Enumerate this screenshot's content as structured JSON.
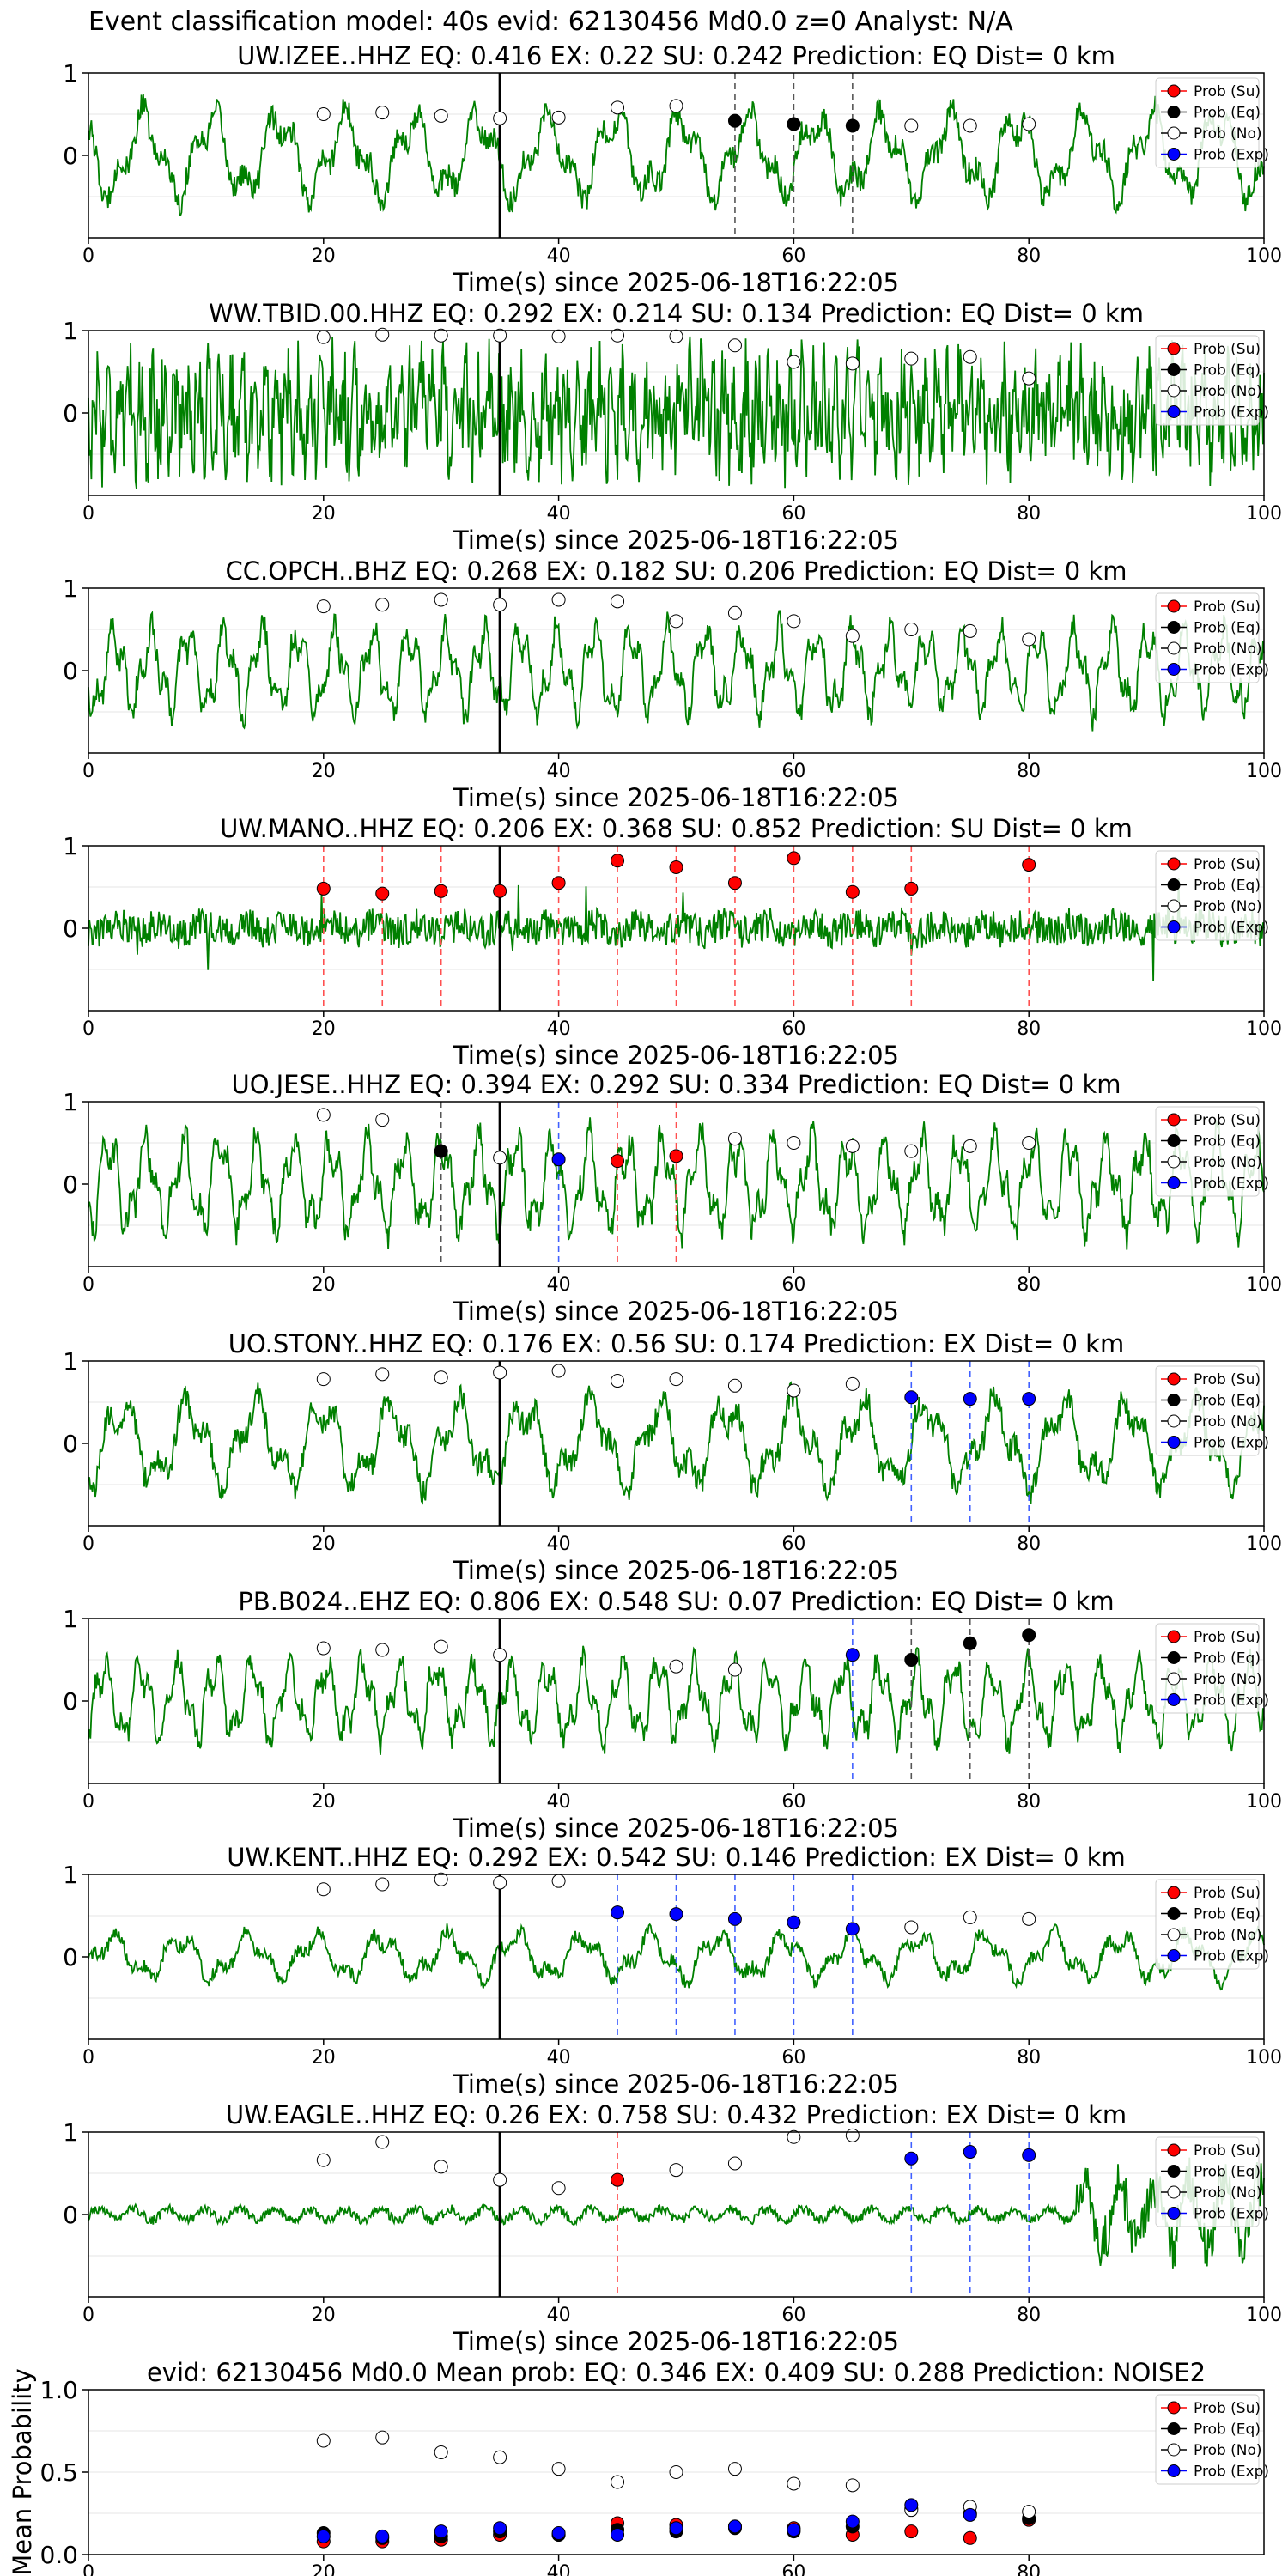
{
  "figure_title": "Event classification model: 40s evid: 62130456 Md0.0 z=0 Analyst: N/A",
  "colors": {
    "waveform": "#008000",
    "su": "#ff0000",
    "eq": "#000000",
    "no": "#ffffff",
    "exp": "#0000ff",
    "marker_line": "#000000",
    "grid": "#e6e6e6",
    "dash_eq": "#555555",
    "dash_su": "#ff5050",
    "dash_exp": "#4060ff"
  },
  "chart_data": [
    {
      "type": "line",
      "title": "UW.IZEE..HHZ   EQ: 0.416  EX: 0.22  SU: 0.242   Prediction: EQ    Dist= 0 km",
      "xlabel": "Time(s) since 2025-06-18T16:22:05",
      "xlim": [
        0,
        100
      ],
      "ylim": [
        -1,
        1
      ],
      "xticks": [
        0,
        20,
        40,
        60,
        80,
        100
      ],
      "yticks": [
        0,
        1
      ],
      "marker_time": 35,
      "grid": true,
      "legend": {
        "placement": "top-right",
        "entries": [
          "Prob (Su)",
          "Prob (Eq)",
          "Prob (No)",
          "Prob (Exp)"
        ]
      },
      "waveform": {
        "amplitude": 0.55,
        "character": "low-frequency"
      },
      "points": {
        "no": [
          [
            20,
            0.5
          ],
          [
            25,
            0.52
          ],
          [
            30,
            0.48
          ],
          [
            35,
            0.45
          ],
          [
            40,
            0.46
          ],
          [
            45,
            0.58
          ],
          [
            50,
            0.6
          ],
          [
            70,
            0.36
          ],
          [
            75,
            0.36
          ],
          [
            80,
            0.38
          ]
        ],
        "eq": [
          [
            55,
            0.42
          ],
          [
            60,
            0.38
          ],
          [
            65,
            0.36
          ]
        ],
        "su": [],
        "exp": []
      },
      "dashed": {
        "eq": [
          55,
          60,
          65
        ],
        "su": [],
        "exp": []
      }
    },
    {
      "type": "line",
      "title": "WW.TBID.00.HHZ   EQ: 0.292  EX: 0.214  SU: 0.134   Prediction: EQ    Dist= 0 km",
      "xlabel": "Time(s) since 2025-06-18T16:22:05",
      "xlim": [
        0,
        100
      ],
      "ylim": [
        -1,
        1
      ],
      "xticks": [
        0,
        20,
        40,
        60,
        80,
        100
      ],
      "yticks": [
        0,
        1
      ],
      "marker_time": 35,
      "grid": true,
      "legend": {
        "placement": "top-right",
        "entries": [
          "Prob (Su)",
          "Prob (Eq)",
          "Prob (No)",
          "Prob (Exp)"
        ]
      },
      "waveform": {
        "amplitude": 0.85,
        "character": "high-frequency"
      },
      "points": {
        "no": [
          [
            20,
            0.92
          ],
          [
            25,
            0.95
          ],
          [
            30,
            0.94
          ],
          [
            35,
            0.94
          ],
          [
            40,
            0.93
          ],
          [
            45,
            0.94
          ],
          [
            50,
            0.93
          ],
          [
            55,
            0.82
          ],
          [
            60,
            0.62
          ],
          [
            65,
            0.6
          ],
          [
            70,
            0.66
          ],
          [
            75,
            0.68
          ],
          [
            80,
            0.42
          ]
        ],
        "eq": [],
        "su": [],
        "exp": []
      },
      "dashed": {
        "eq": [],
        "su": [],
        "exp": []
      }
    },
    {
      "type": "line",
      "title": "CC.OPCH..BHZ   EQ: 0.268  EX: 0.182  SU: 0.206   Prediction: EQ    Dist= 0 km",
      "xlabel": "Time(s) since 2025-06-18T16:22:05",
      "xlim": [
        0,
        100
      ],
      "ylim": [
        -1,
        1
      ],
      "xticks": [
        0,
        20,
        40,
        60,
        80,
        100
      ],
      "yticks": [
        0,
        1
      ],
      "marker_time": 35,
      "grid": true,
      "legend": {
        "placement": "top-right",
        "entries": [
          "Prob (Su)",
          "Prob (Eq)",
          "Prob (No)",
          "Prob (Exp)"
        ]
      },
      "waveform": {
        "amplitude": 0.55,
        "character": "medium"
      },
      "points": {
        "no": [
          [
            20,
            0.78
          ],
          [
            25,
            0.8
          ],
          [
            30,
            0.86
          ],
          [
            35,
            0.8
          ],
          [
            40,
            0.86
          ],
          [
            45,
            0.84
          ],
          [
            50,
            0.6
          ],
          [
            55,
            0.7
          ],
          [
            60,
            0.6
          ],
          [
            65,
            0.42
          ],
          [
            70,
            0.5
          ],
          [
            75,
            0.48
          ],
          [
            80,
            0.38
          ]
        ],
        "eq": [],
        "su": [],
        "exp": []
      },
      "dashed": {
        "eq": [],
        "su": [],
        "exp": []
      }
    },
    {
      "type": "line",
      "title": "UW.MANO..HHZ   EQ: 0.206  EX: 0.368  SU: 0.852   Prediction: SU    Dist= 0 km",
      "xlabel": "Time(s) since 2025-06-18T16:22:05",
      "xlim": [
        0,
        100
      ],
      "ylim": [
        -1,
        1
      ],
      "xticks": [
        0,
        20,
        40,
        60,
        80,
        100
      ],
      "yticks": [
        0,
        1
      ],
      "marker_time": 35,
      "grid": true,
      "legend": {
        "placement": "top-right",
        "entries": [
          "Prob (Su)",
          "Prob (Eq)",
          "Prob (No)",
          "Prob (Exp)"
        ]
      },
      "waveform": {
        "amplitude": 0.22,
        "character": "noisy"
      },
      "points": {
        "su": [
          [
            20,
            0.48
          ],
          [
            25,
            0.42
          ],
          [
            30,
            0.45
          ],
          [
            35,
            0.45
          ],
          [
            40,
            0.55
          ],
          [
            45,
            0.82
          ],
          [
            50,
            0.74
          ],
          [
            55,
            0.55
          ],
          [
            60,
            0.85
          ],
          [
            65,
            0.44
          ],
          [
            70,
            0.48
          ],
          [
            80,
            0.77
          ]
        ],
        "eq": [],
        "no": [],
        "exp": []
      },
      "dashed": {
        "eq": [],
        "su": [
          20,
          25,
          30,
          35,
          40,
          45,
          50,
          55,
          60,
          65,
          70,
          80
        ],
        "exp": []
      }
    },
    {
      "type": "line",
      "title": "UO.JESE..HHZ   EQ: 0.394  EX: 0.292  SU: 0.334   Prediction: EQ    Dist= 0 km",
      "xlabel": "Time(s) since 2025-06-18T16:22:05",
      "xlim": [
        0,
        100
      ],
      "ylim": [
        -1,
        1
      ],
      "xticks": [
        0,
        20,
        40,
        60,
        80,
        100
      ],
      "yticks": [
        0,
        1
      ],
      "marker_time": 35,
      "grid": true,
      "legend": {
        "placement": "top-right",
        "entries": [
          "Prob (Su)",
          "Prob (Eq)",
          "Prob (No)",
          "Prob (Exp)"
        ]
      },
      "waveform": {
        "amplitude": 0.6,
        "character": "medium"
      },
      "points": {
        "no": [
          [
            20,
            0.84
          ],
          [
            25,
            0.78
          ],
          [
            35,
            0.32
          ],
          [
            55,
            0.55
          ],
          [
            60,
            0.5
          ],
          [
            65,
            0.46
          ],
          [
            70,
            0.4
          ],
          [
            75,
            0.46
          ],
          [
            80,
            0.5
          ]
        ],
        "eq": [
          [
            30,
            0.4
          ]
        ],
        "exp": [
          [
            40,
            0.3
          ]
        ],
        "su": [
          [
            45,
            0.28
          ],
          [
            50,
            0.34
          ]
        ]
      },
      "dashed": {
        "eq": [
          30
        ],
        "su": [
          45,
          50
        ],
        "exp": [
          40
        ]
      }
    },
    {
      "type": "line",
      "title": "UO.STONY..HHZ   EQ: 0.176  EX: 0.56  SU: 0.174   Prediction: EX    Dist= 0 km",
      "xlabel": "Time(s) since 2025-06-18T16:22:05",
      "xlim": [
        0,
        100
      ],
      "ylim": [
        -1,
        1
      ],
      "xticks": [
        0,
        20,
        40,
        60,
        80,
        100
      ],
      "yticks": [
        0,
        1
      ],
      "marker_time": 35,
      "grid": true,
      "legend": {
        "placement": "top-right",
        "entries": [
          "Prob (Su)",
          "Prob (Eq)",
          "Prob (No)",
          "Prob (Exp)"
        ]
      },
      "waveform": {
        "amplitude": 0.55,
        "character": "low-frequency"
      },
      "points": {
        "no": [
          [
            20,
            0.78
          ],
          [
            25,
            0.84
          ],
          [
            30,
            0.8
          ],
          [
            35,
            0.86
          ],
          [
            40,
            0.88
          ],
          [
            45,
            0.76
          ],
          [
            50,
            0.78
          ],
          [
            55,
            0.7
          ],
          [
            60,
            0.64
          ],
          [
            65,
            0.72
          ]
        ],
        "exp": [
          [
            70,
            0.56
          ],
          [
            75,
            0.54
          ],
          [
            80,
            0.54
          ]
        ],
        "eq": [],
        "su": []
      },
      "dashed": {
        "eq": [],
        "su": [],
        "exp": [
          70,
          75,
          80
        ]
      }
    },
    {
      "type": "line",
      "title": "PB.B024..EHZ   EQ: 0.806  EX: 0.548  SU: 0.07   Prediction: EQ    Dist= 0 km",
      "xlabel": "Time(s) since 2025-06-18T16:22:05",
      "xlim": [
        0,
        100
      ],
      "ylim": [
        -1,
        1
      ],
      "xticks": [
        0,
        20,
        40,
        60,
        80,
        100
      ],
      "yticks": [
        0,
        1
      ],
      "marker_time": 35,
      "grid": true,
      "legend": {
        "placement": "top-right",
        "entries": [
          "Prob (Su)",
          "Prob (Eq)",
          "Prob (No)",
          "Prob (Exp)"
        ]
      },
      "waveform": {
        "amplitude": 0.5,
        "character": "medium"
      },
      "points": {
        "no": [
          [
            20,
            0.64
          ],
          [
            25,
            0.62
          ],
          [
            30,
            0.66
          ],
          [
            35,
            0.56
          ],
          [
            50,
            0.42
          ],
          [
            55,
            0.38
          ]
        ],
        "exp": [
          [
            65,
            0.56
          ]
        ],
        "eq": [
          [
            70,
            0.5
          ],
          [
            75,
            0.7
          ],
          [
            80,
            0.8
          ]
        ],
        "su": []
      },
      "dashed": {
        "eq": [
          70,
          75,
          80
        ],
        "su": [],
        "exp": [
          65
        ]
      }
    },
    {
      "type": "line",
      "title": "UW.KENT..HHZ   EQ: 0.292  EX: 0.542  SU: 0.146   Prediction: EX    Dist= 0 km",
      "xlabel": "Time(s) since 2025-06-18T16:22:05",
      "xlim": [
        0,
        100
      ],
      "ylim": [
        -1,
        1
      ],
      "xticks": [
        0,
        20,
        40,
        60,
        80,
        100
      ],
      "yticks": [
        0,
        1
      ],
      "marker_time": 35,
      "grid": true,
      "legend": {
        "placement": "top-right",
        "entries": [
          "Prob (Su)",
          "Prob (Eq)",
          "Prob (No)",
          "Prob (Exp)"
        ]
      },
      "waveform": {
        "amplitude": 0.3,
        "character": "low-frequency"
      },
      "points": {
        "no": [
          [
            20,
            0.82
          ],
          [
            25,
            0.88
          ],
          [
            30,
            0.94
          ],
          [
            35,
            0.9
          ],
          [
            40,
            0.92
          ],
          [
            70,
            0.36
          ],
          [
            75,
            0.48
          ],
          [
            80,
            0.46
          ]
        ],
        "exp": [
          [
            45,
            0.54
          ],
          [
            50,
            0.52
          ],
          [
            55,
            0.46
          ],
          [
            60,
            0.42
          ],
          [
            65,
            0.34
          ]
        ],
        "eq": [],
        "su": []
      },
      "dashed": {
        "eq": [],
        "su": [],
        "exp": [
          45,
          50,
          55,
          60,
          65
        ]
      }
    },
    {
      "type": "line",
      "title": "UW.EAGLE..HHZ   EQ: 0.26  EX: 0.758  SU: 0.432   Prediction: EX    Dist= 0 km",
      "xlabel": "Time(s) since 2025-06-18T16:22:05",
      "xlim": [
        0,
        100
      ],
      "ylim": [
        -1,
        1
      ],
      "xticks": [
        0,
        20,
        40,
        60,
        80,
        100
      ],
      "yticks": [
        0,
        1
      ],
      "marker_time": 35,
      "grid": true,
      "legend": {
        "placement": "top-right",
        "entries": [
          "Prob (Su)",
          "Prob (Eq)",
          "Prob (No)",
          "Prob (Exp)"
        ]
      },
      "waveform": {
        "amplitude": 0.14,
        "character": "quiet-then-burst"
      },
      "points": {
        "no": [
          [
            20,
            0.66
          ],
          [
            25,
            0.88
          ],
          [
            30,
            0.58
          ],
          [
            35,
            0.42
          ],
          [
            40,
            0.32
          ],
          [
            50,
            0.54
          ],
          [
            55,
            0.62
          ],
          [
            60,
            0.94
          ],
          [
            65,
            0.96
          ]
        ],
        "su": [
          [
            45,
            0.42
          ]
        ],
        "exp": [
          [
            70,
            0.68
          ],
          [
            75,
            0.76
          ],
          [
            80,
            0.72
          ]
        ],
        "eq": []
      },
      "dashed": {
        "eq": [],
        "su": [
          45
        ],
        "exp": [
          70,
          75,
          80
        ]
      }
    },
    {
      "type": "scatter",
      "title": "evid: 62130456  Md0.0   Mean prob:    EQ: 0.346  EX: 0.409  SU: 0.288   Prediction: NOISE2",
      "ylabel": "Mean Probability",
      "xlim": [
        0,
        100
      ],
      "ylim": [
        0,
        1
      ],
      "xticks": [
        0,
        20,
        40,
        60,
        80
      ],
      "yticks": [
        0.0,
        0.5,
        1.0
      ],
      "ytick_labels": [
        "0.0",
        "0.5",
        "1.0"
      ],
      "grid": true,
      "legend": {
        "placement": "top-right",
        "entries": [
          "Prob (Su)",
          "Prob (Eq)",
          "Prob (No)",
          "Prob (Exp)"
        ]
      },
      "points": {
        "no": [
          [
            20,
            0.69
          ],
          [
            25,
            0.71
          ],
          [
            30,
            0.62
          ],
          [
            35,
            0.59
          ],
          [
            40,
            0.52
          ],
          [
            45,
            0.44
          ],
          [
            50,
            0.5
          ],
          [
            55,
            0.52
          ],
          [
            60,
            0.43
          ],
          [
            65,
            0.42
          ],
          [
            70,
            0.27
          ],
          [
            75,
            0.29
          ],
          [
            80,
            0.26
          ]
        ],
        "exp": [
          [
            20,
            0.11
          ],
          [
            25,
            0.11
          ],
          [
            30,
            0.14
          ],
          [
            35,
            0.16
          ],
          [
            40,
            0.13
          ],
          [
            45,
            0.12
          ],
          [
            50,
            0.16
          ],
          [
            55,
            0.17
          ],
          [
            60,
            0.15
          ],
          [
            65,
            0.2
          ],
          [
            70,
            0.3
          ],
          [
            75,
            0.24
          ]
        ],
        "eq": [
          [
            20,
            0.13
          ],
          [
            25,
            0.1
          ],
          [
            30,
            0.11
          ],
          [
            35,
            0.14
          ],
          [
            40,
            0.12
          ],
          [
            45,
            0.15
          ],
          [
            50,
            0.14
          ],
          [
            55,
            0.16
          ],
          [
            60,
            0.14
          ],
          [
            65,
            0.17
          ],
          [
            70,
            0.28
          ],
          [
            75,
            0.25
          ],
          [
            80,
            0.22
          ]
        ],
        "su": [
          [
            20,
            0.08
          ],
          [
            25,
            0.08
          ],
          [
            30,
            0.09
          ],
          [
            35,
            0.12
          ],
          [
            40,
            0.12
          ],
          [
            45,
            0.19
          ],
          [
            50,
            0.18
          ],
          [
            55,
            0.17
          ],
          [
            60,
            0.16
          ],
          [
            65,
            0.12
          ],
          [
            70,
            0.14
          ],
          [
            75,
            0.1
          ],
          [
            80,
            0.21
          ]
        ]
      },
      "dashed": {
        "eq": [],
        "su": [],
        "exp": []
      }
    }
  ]
}
